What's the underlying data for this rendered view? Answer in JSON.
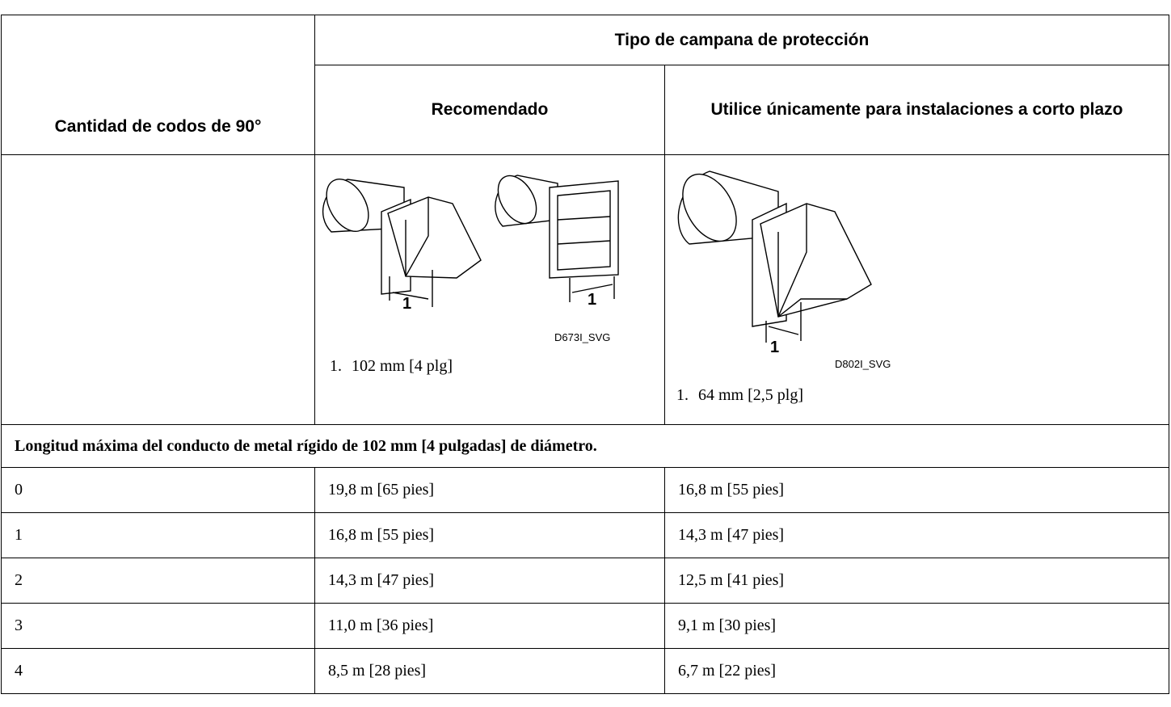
{
  "table": {
    "header": {
      "group": "Tipo de campana de protección",
      "columns": [
        "Cantidad de codos de 90°",
        "Recomendado",
        "Utilice únicamente para instalaciones a corto plazo"
      ]
    },
    "figures": [
      {
        "callouts": [
          "1",
          "1"
        ],
        "code": "D673I_SVG",
        "legend": {
          "number": "1.",
          "text": "102 mm [4 plg]"
        }
      },
      {
        "callouts": [
          "1"
        ],
        "code": "D802I_SVG",
        "legend": {
          "number": "1.",
          "text": "64 mm [2,5 plg]"
        }
      }
    ],
    "section": "Longitud máxima del conducto de metal rígido de 102 mm [4 pulgadas] de diámetro.",
    "rows": [
      [
        "0",
        "19,8 m [65 pies]",
        "16,8 m [55 pies]"
      ],
      [
        "1",
        "16,8 m [55 pies]",
        "14,3 m [47 pies]"
      ],
      [
        "2",
        "14,3 m [47 pies]",
        "12,5 m [41 pies]"
      ],
      [
        "3",
        "11,0 m [36 pies]",
        "9,1 m [30 pies]"
      ],
      [
        "4",
        "8,5 m [28 pies]",
        "6,7 m [22 pies]"
      ]
    ]
  }
}
